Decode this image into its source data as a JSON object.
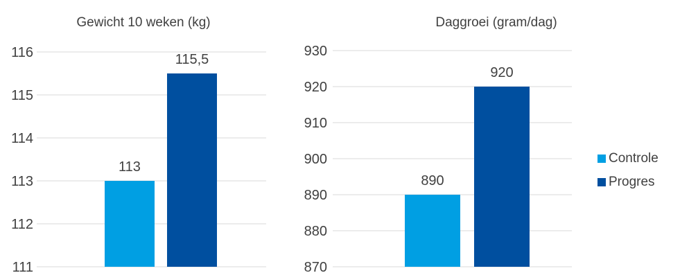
{
  "colors": {
    "Controle": "#009fe3",
    "Progres": "#004f9f",
    "grid": "#d9d9d9",
    "text": "#404040"
  },
  "legend": {
    "position": "right",
    "items": [
      "Controle",
      "Progres"
    ]
  },
  "chart_data": [
    {
      "type": "bar",
      "title": "Gewicht 10 weken (kg)",
      "categories": [
        ""
      ],
      "series": [
        {
          "name": "Controle",
          "values": [
            113
          ],
          "label": "113"
        },
        {
          "name": "Progres",
          "values": [
            115.5
          ],
          "label": "115,5"
        }
      ],
      "ylim": [
        111,
        116
      ],
      "yticks": [
        111,
        112,
        113,
        114,
        115,
        116
      ],
      "ytick_labels": [
        "111",
        "112",
        "113",
        "114",
        "115",
        "116"
      ],
      "grid": true
    },
    {
      "type": "bar",
      "title": "Daggroei (gram/dag)",
      "categories": [
        ""
      ],
      "series": [
        {
          "name": "Controle",
          "values": [
            890
          ],
          "label": "890"
        },
        {
          "name": "Progres",
          "values": [
            920
          ],
          "label": "920"
        }
      ],
      "ylim": [
        870,
        930
      ],
      "yticks": [
        870,
        880,
        890,
        900,
        910,
        920,
        930
      ],
      "ytick_labels": [
        "870",
        "880",
        "890",
        "900",
        "910",
        "920",
        "930"
      ],
      "grid": true
    }
  ]
}
